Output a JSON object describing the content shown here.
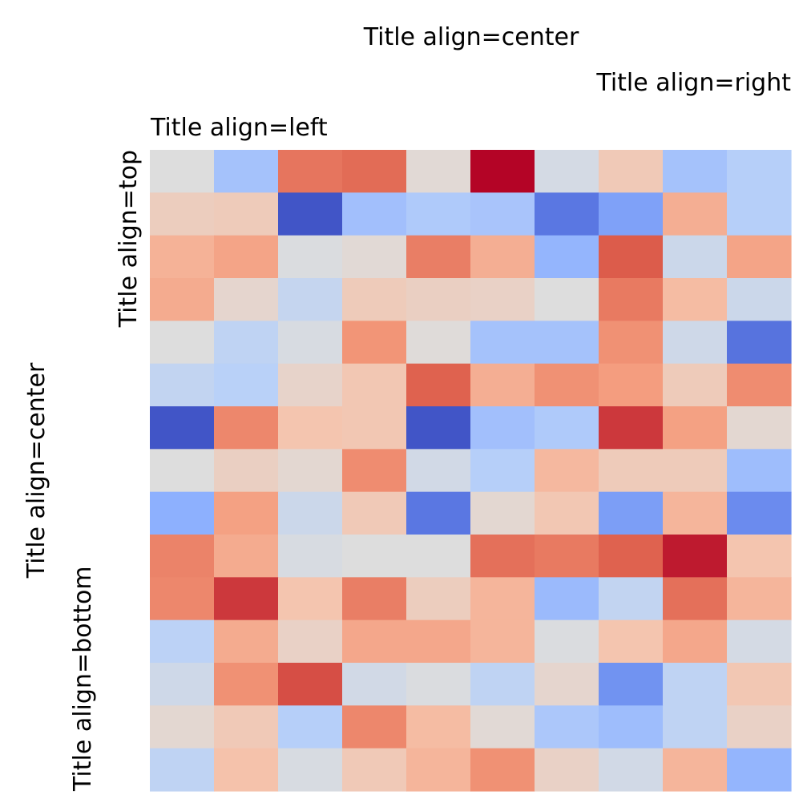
{
  "chart_data": {
    "type": "heatmap",
    "colormap": "coolwarm",
    "rows": 15,
    "cols": 10,
    "value_range": [
      0,
      1
    ],
    "titles": {
      "top_center": "Title align=center",
      "top_right": "Title align=right",
      "top_left": "Title align=left",
      "left_top": "Title align=top",
      "left_center": "Title align=center",
      "left_bottom": "Title align=bottom"
    },
    "values": [
      [
        0.5,
        0.32,
        0.83,
        0.85,
        0.52,
        1.0,
        0.47,
        0.6,
        0.32,
        0.37
      ],
      [
        0.58,
        0.59,
        0.02,
        0.31,
        0.35,
        0.33,
        0.1,
        0.21,
        0.69,
        0.37
      ],
      [
        0.68,
        0.72,
        0.49,
        0.52,
        0.81,
        0.69,
        0.27,
        0.88,
        0.44,
        0.72
      ],
      [
        0.7,
        0.54,
        0.42,
        0.59,
        0.57,
        0.56,
        0.5,
        0.82,
        0.65,
        0.44
      ],
      [
        0.5,
        0.4,
        0.48,
        0.76,
        0.51,
        0.32,
        0.32,
        0.77,
        0.45,
        0.09
      ],
      [
        0.41,
        0.38,
        0.55,
        0.61,
        0.87,
        0.69,
        0.77,
        0.74,
        0.59,
        0.78
      ],
      [
        0.02,
        0.79,
        0.62,
        0.61,
        0.02,
        0.31,
        0.35,
        0.93,
        0.73,
        0.53
      ],
      [
        0.5,
        0.57,
        0.53,
        0.78,
        0.46,
        0.37,
        0.66,
        0.59,
        0.59,
        0.3
      ],
      [
        0.25,
        0.73,
        0.44,
        0.6,
        0.1,
        0.53,
        0.61,
        0.2,
        0.67,
        0.15
      ],
      [
        0.8,
        0.7,
        0.48,
        0.5,
        0.5,
        0.84,
        0.82,
        0.87,
        0.97,
        0.62
      ],
      [
        0.79,
        0.93,
        0.62,
        0.81,
        0.58,
        0.67,
        0.29,
        0.41,
        0.84,
        0.67
      ],
      [
        0.39,
        0.7,
        0.56,
        0.71,
        0.71,
        0.67,
        0.49,
        0.62,
        0.71,
        0.47
      ],
      [
        0.45,
        0.77,
        0.9,
        0.46,
        0.49,
        0.4,
        0.54,
        0.17,
        0.4,
        0.61
      ],
      [
        0.53,
        0.6,
        0.37,
        0.79,
        0.65,
        0.52,
        0.34,
        0.3,
        0.4,
        0.56
      ],
      [
        0.4,
        0.63,
        0.48,
        0.6,
        0.67,
        0.77,
        0.56,
        0.46,
        0.67,
        0.27
      ]
    ]
  }
}
